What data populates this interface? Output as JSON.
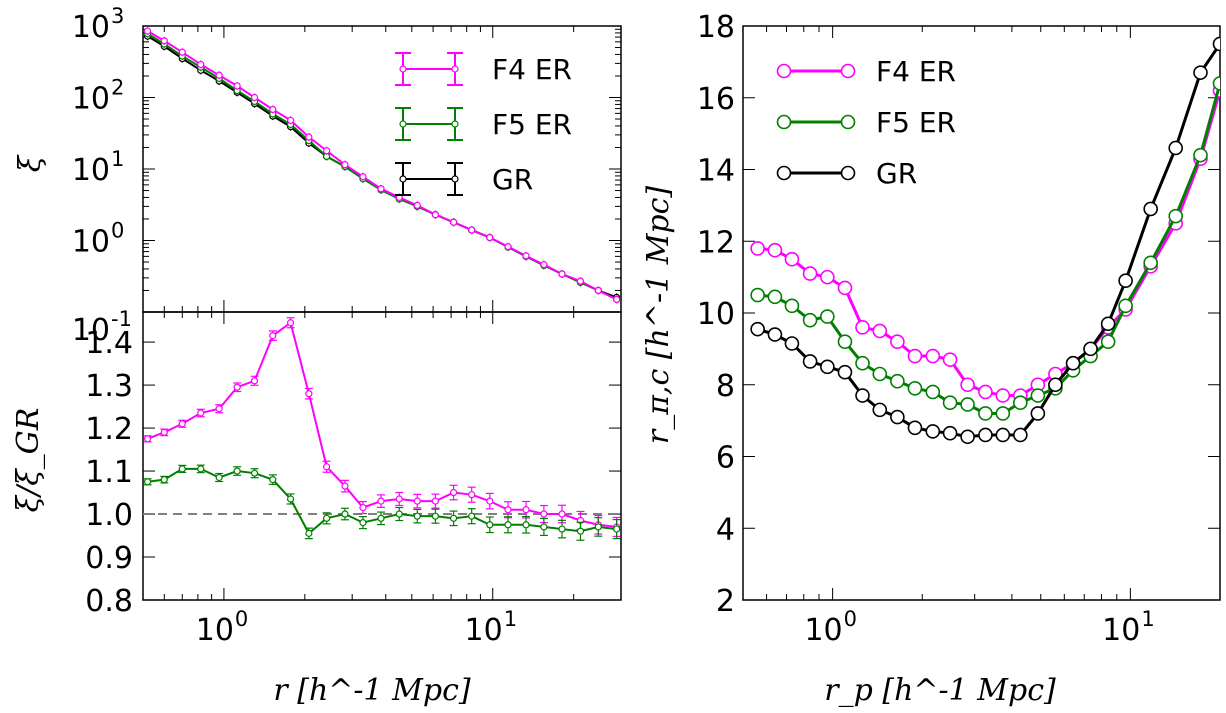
{
  "colors": {
    "f4": "#ff00ff",
    "f5": "#008000",
    "gr": "#000000",
    "reference": "#808080"
  },
  "chart_data": [
    {
      "type": "line",
      "panel": "top-left",
      "xscale": "log",
      "yscale": "log",
      "xlim": [
        0.5,
        30
      ],
      "ylim": [
        0.1,
        1000
      ],
      "ylabel": "ξ",
      "yticks": [
        {
          "value": 1000,
          "base": "10",
          "exp": "3"
        },
        {
          "value": 100,
          "base": "10",
          "exp": "2"
        },
        {
          "value": 10,
          "base": "10",
          "exp": "1"
        },
        {
          "value": 1,
          "base": "10",
          "exp": "0"
        },
        {
          "value": 0.1,
          "base": "10",
          "exp": "-1"
        }
      ],
      "legend": {
        "position": "top-right",
        "entries": [
          "F4 ER",
          "F5 ER",
          "GR"
        ]
      },
      "x": [
        0.52,
        0.6,
        0.7,
        0.82,
        0.96,
        1.12,
        1.3,
        1.52,
        1.77,
        2.07,
        2.41,
        2.82,
        3.29,
        3.84,
        4.49,
        5.24,
        6.12,
        7.15,
        8.35,
        9.75,
        11.4,
        13.3,
        15.5,
        18.1,
        21.2,
        24.7,
        28.9
      ],
      "series": [
        {
          "name": "F4 ER",
          "values": [
            850,
            620,
            430,
            290,
            205,
            145,
            100,
            68,
            48,
            28,
            18,
            11.5,
            7.8,
            5.3,
            4.0,
            3.1,
            2.3,
            1.8,
            1.4,
            1.1,
            0.82,
            0.61,
            0.46,
            0.34,
            0.27,
            0.2,
            0.15
          ]
        },
        {
          "name": "F5 ER",
          "values": [
            780,
            560,
            380,
            265,
            185,
            125,
            88,
            59,
            42,
            25,
            15,
            10.8,
            7.3,
            5.1,
            3.8,
            3.0,
            2.3,
            1.8,
            1.4,
            1.1,
            0.81,
            0.6,
            0.45,
            0.34,
            0.26,
            0.2,
            0.15
          ]
        },
        {
          "name": "GR",
          "values": [
            720,
            520,
            350,
            240,
            170,
            118,
            82,
            55,
            39,
            23,
            15,
            10.8,
            7.4,
            5.2,
            3.9,
            3.0,
            2.3,
            1.8,
            1.4,
            1.1,
            0.81,
            0.6,
            0.45,
            0.34,
            0.26,
            0.2,
            0.16
          ]
        }
      ]
    },
    {
      "type": "line",
      "panel": "bottom-left",
      "xscale": "log",
      "xlim": [
        0.5,
        30
      ],
      "ylim": [
        0.8,
        1.47
      ],
      "xlabel": "r [h^-1 Mpc]",
      "ylabel": "ξ/ξ_GR",
      "yticks": [
        "0.8",
        "0.9",
        "1.0",
        "1.1",
        "1.2",
        "1.3",
        "1.4"
      ],
      "xticks": [
        {
          "value": 1,
          "base": "10",
          "exp": "0"
        },
        {
          "value": 10,
          "base": "10",
          "exp": "1"
        }
      ],
      "reference_line": 1.0,
      "x": [
        0.52,
        0.6,
        0.7,
        0.82,
        0.96,
        1.12,
        1.3,
        1.52,
        1.77,
        2.07,
        2.41,
        2.82,
        3.29,
        3.84,
        4.49,
        5.24,
        6.12,
        7.15,
        8.35,
        9.75,
        11.4,
        13.3,
        15.5,
        18.1,
        21.2,
        24.7,
        28.9
      ],
      "series": [
        {
          "name": "F4 ER",
          "values": [
            1.175,
            1.19,
            1.21,
            1.235,
            1.245,
            1.295,
            1.31,
            1.415,
            1.445,
            1.28,
            1.11,
            1.065,
            1.015,
            1.03,
            1.035,
            1.03,
            1.03,
            1.05,
            1.045,
            1.03,
            1.01,
            1.01,
            1.0,
            1.0,
            0.985,
            0.975,
            0.97
          ]
        },
        {
          "name": "F5 ER",
          "values": [
            1.075,
            1.08,
            1.105,
            1.105,
            1.085,
            1.1,
            1.095,
            1.08,
            1.035,
            0.955,
            0.99,
            1.0,
            0.98,
            0.99,
            1.0,
            0.995,
            0.995,
            0.99,
            0.995,
            0.975,
            0.975,
            0.975,
            0.97,
            0.965,
            0.96,
            0.97,
            0.965
          ]
        }
      ]
    },
    {
      "type": "line",
      "panel": "right",
      "xscale": "log",
      "xlim": [
        0.5,
        20
      ],
      "ylim": [
        2,
        18
      ],
      "xlabel": "r_p [h^-1 Mpc]",
      "ylabel": "r_π,c [h^-1 Mpc]",
      "yticks": [
        "2",
        "4",
        "6",
        "8",
        "10",
        "12",
        "14",
        "16",
        "18"
      ],
      "xticks": [
        {
          "value": 1,
          "base": "10",
          "exp": "0"
        },
        {
          "value": 10,
          "base": "10",
          "exp": "1"
        }
      ],
      "legend": {
        "position": "top-left",
        "entries": [
          "F4 ER",
          "F5 ER",
          "GR"
        ]
      },
      "x": [
        0.56,
        0.64,
        0.73,
        0.84,
        0.96,
        1.1,
        1.26,
        1.44,
        1.65,
        1.89,
        2.17,
        2.48,
        2.84,
        3.26,
        3.73,
        4.27,
        4.89,
        5.6,
        6.42,
        7.35,
        8.42,
        9.64,
        11.7,
        14.2,
        17.2,
        20.0
      ],
      "series": [
        {
          "name": "F4 ER",
          "values": [
            11.8,
            11.75,
            11.5,
            11.1,
            11.0,
            10.7,
            9.6,
            9.5,
            9.2,
            8.8,
            8.8,
            8.7,
            8.0,
            7.8,
            7.7,
            7.7,
            8.0,
            8.3,
            8.6,
            9.0,
            9.6,
            10.1,
            11.3,
            12.5,
            14.3,
            16.2
          ]
        },
        {
          "name": "F5 ER",
          "values": [
            10.5,
            10.45,
            10.2,
            9.8,
            9.9,
            9.2,
            8.6,
            8.3,
            8.1,
            7.9,
            7.8,
            7.5,
            7.45,
            7.2,
            7.2,
            7.5,
            7.7,
            7.9,
            8.4,
            8.8,
            9.2,
            10.2,
            11.4,
            12.7,
            14.4,
            16.4
          ]
        },
        {
          "name": "GR",
          "values": [
            9.55,
            9.4,
            9.15,
            8.65,
            8.5,
            8.35,
            7.7,
            7.3,
            7.1,
            6.8,
            6.7,
            6.65,
            6.55,
            6.6,
            6.6,
            6.6,
            7.2,
            8.0,
            8.6,
            9.0,
            9.7,
            10.9,
            12.9,
            14.6,
            16.7,
            17.5
          ]
        }
      ]
    }
  ]
}
